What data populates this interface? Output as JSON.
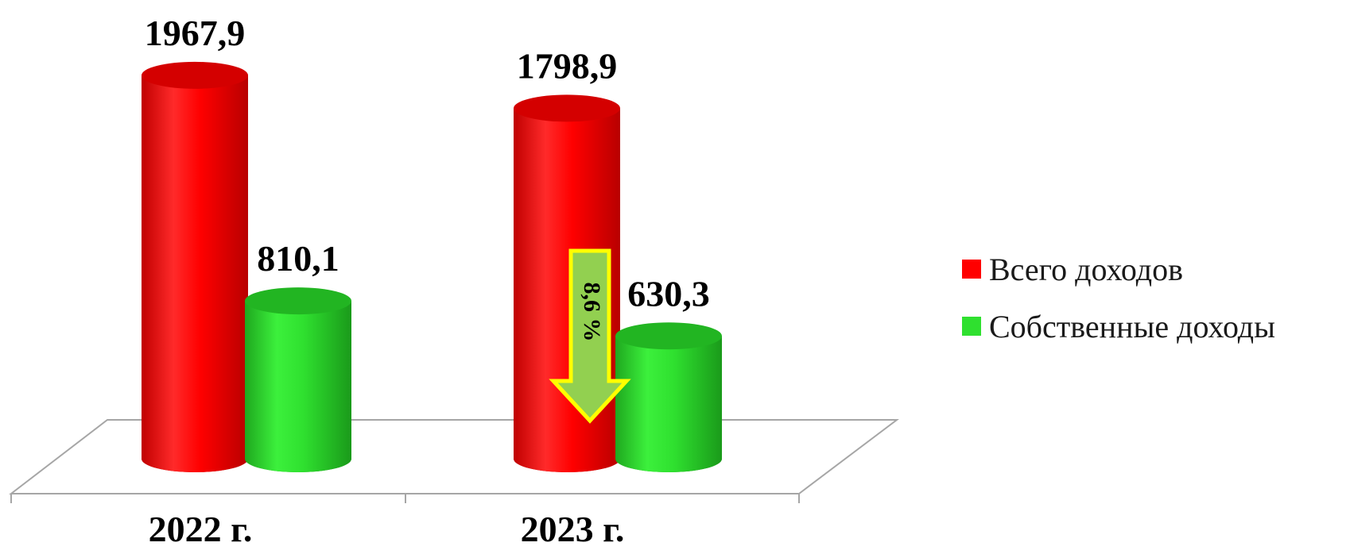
{
  "chart_data": {
    "type": "bar",
    "categories": [
      "2022 г.",
      "2023 г."
    ],
    "series": [
      {
        "name": "Всего доходов",
        "values": [
          1967.9,
          1798.9
        ],
        "labels": [
          "1967,9",
          "1798,9"
        ],
        "color": "#ff0000"
      },
      {
        "name": "Собственные доходы",
        "values": [
          810.1,
          630.3
        ],
        "labels": [
          "810,1",
          "630,3"
        ],
        "color": "#2fe02f"
      }
    ],
    "annotation": {
      "text": "8,6 %",
      "category": "2023 г.",
      "direction": "down"
    },
    "colors": {
      "arrow_fill": "#92d050",
      "arrow_border": "#ffff00"
    },
    "grid": false,
    "legend_position": "right"
  }
}
